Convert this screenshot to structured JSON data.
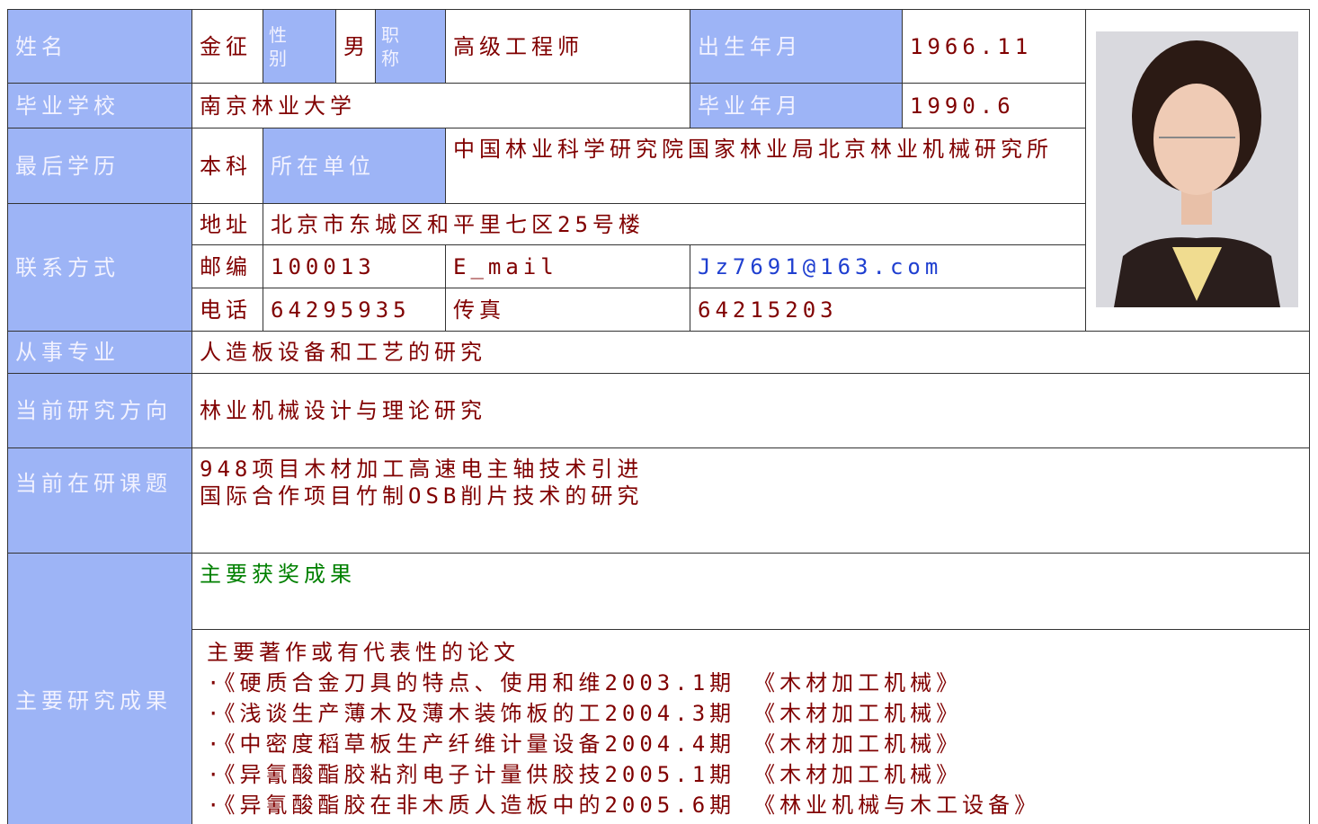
{
  "profile": {
    "name_label": "姓名",
    "name": "金征",
    "gender_label": "性别",
    "gender": "男",
    "title_label": "职称",
    "title": "高级工程师",
    "birth_label": "出生年月",
    "birth": "1966.11",
    "school_label": "毕业学校",
    "school": "南京林业大学",
    "grad_label": "毕业年月",
    "grad": "1990.6",
    "degree_label": "最后学历",
    "degree": "本科",
    "unit_label": "所在单位",
    "unit": "中国林业科学研究院国家林业局北京林业机械研究所",
    "contact_label": "联系方式",
    "address_label": "地址",
    "address": "北京市东城区和平里七区25号楼",
    "zip_label": "邮编",
    "zip": "100013",
    "email_label": "E_mail",
    "email": "Jz7691@163.com",
    "phone_label": "电话",
    "phone": "64295935",
    "fax_label": "传真",
    "fax": "64215203",
    "major_label": "从事专业",
    "major": "人造板设备和工艺的研究",
    "direction_label": "当前研究方向",
    "direction": "林业机械设计与理论研究",
    "projects_label": "当前在研课题",
    "projects": [
      "948项目木材加工高速电主轴技术引进",
      "国际合作项目竹制OSB削片技术的研究"
    ],
    "results_label": "主要研究成果",
    "awards_title": "主要获奖成果",
    "papers_title": "主要著作或有代表性的论文",
    "papers": [
      {
        "title": "·《硬质合金刀具的特点、使用和维",
        "issue": "2003.1期",
        "journal": "《木材加工机械》"
      },
      {
        "title": "·《浅谈生产薄木及薄木装饰板的工",
        "issue": "2004.3期",
        "journal": "《木材加工机械》"
      },
      {
        "title": "·《中密度稻草板生产纤维计量设备",
        "issue": "2004.4期",
        "journal": "《木材加工机械》"
      },
      {
        "title": "·《异氰酸酯胶粘剂电子计量供胶技",
        "issue": "2005.1期",
        "journal": "《木材加工机械》"
      },
      {
        "title": "·《异氰酸酯胶在非木质人造板中的",
        "issue": "2005.6期",
        "journal": "《林业机械与木工设备》"
      }
    ]
  }
}
